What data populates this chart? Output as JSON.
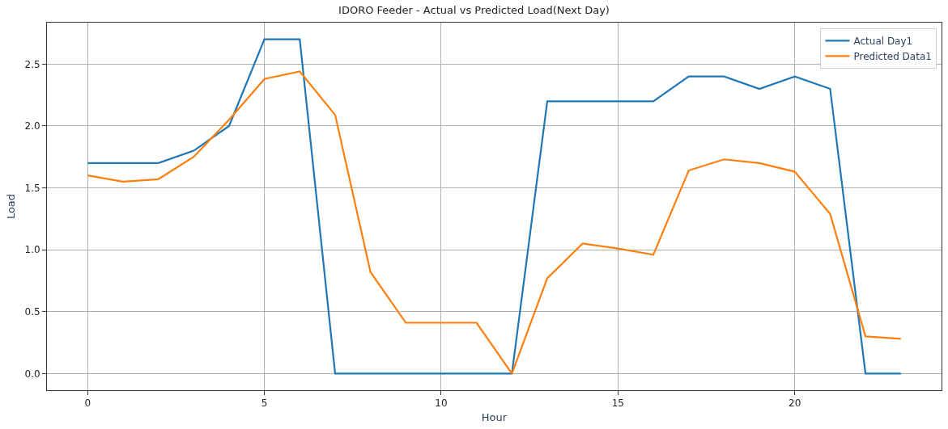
{
  "chart_data": {
    "type": "line",
    "title": "IDORO Feeder - Actual vs Predicted Load(Next Day)",
    "xlabel": "Hour",
    "ylabel": "Load",
    "x": [
      0,
      1,
      2,
      3,
      4,
      5,
      6,
      7,
      8,
      9,
      10,
      11,
      12,
      13,
      14,
      15,
      16,
      17,
      18,
      19,
      20,
      21,
      22,
      23
    ],
    "series": [
      {
        "name": "Actual Day1",
        "color": "#1f77b4",
        "values": [
          1.7,
          1.7,
          1.7,
          1.8,
          2.0,
          2.7,
          2.7,
          0,
          0,
          0,
          0,
          0,
          0,
          2.2,
          2.2,
          2.2,
          2.2,
          2.4,
          2.4,
          2.3,
          2.4,
          2.3,
          0,
          0
        ]
      },
      {
        "name": "Predicted Data1",
        "color": "#ff7f0e",
        "values": [
          1.6,
          1.55,
          1.57,
          1.75,
          2.05,
          2.38,
          2.44,
          2.09,
          0.82,
          0.41,
          0.41,
          0.41,
          0,
          0.77,
          1.05,
          1.01,
          0.96,
          1.64,
          1.73,
          1.7,
          1.63,
          1.29,
          0.3,
          0.28
        ]
      }
    ],
    "xlim": [
      -1.15,
      24.15
    ],
    "xticks": [
      0,
      5,
      10,
      15,
      20
    ],
    "ylim": [
      -0.135,
      2.835
    ],
    "yticks": [
      {
        "value": 0,
        "label": "0.0"
      },
      0.5,
      {
        "value": 1,
        "label": "1.0"
      },
      1.5,
      {
        "value": 2,
        "label": "2.0"
      },
      2.5
    ],
    "grid": true,
    "legend": "top right",
    "marker": "none",
    "line_style": "solid"
  }
}
